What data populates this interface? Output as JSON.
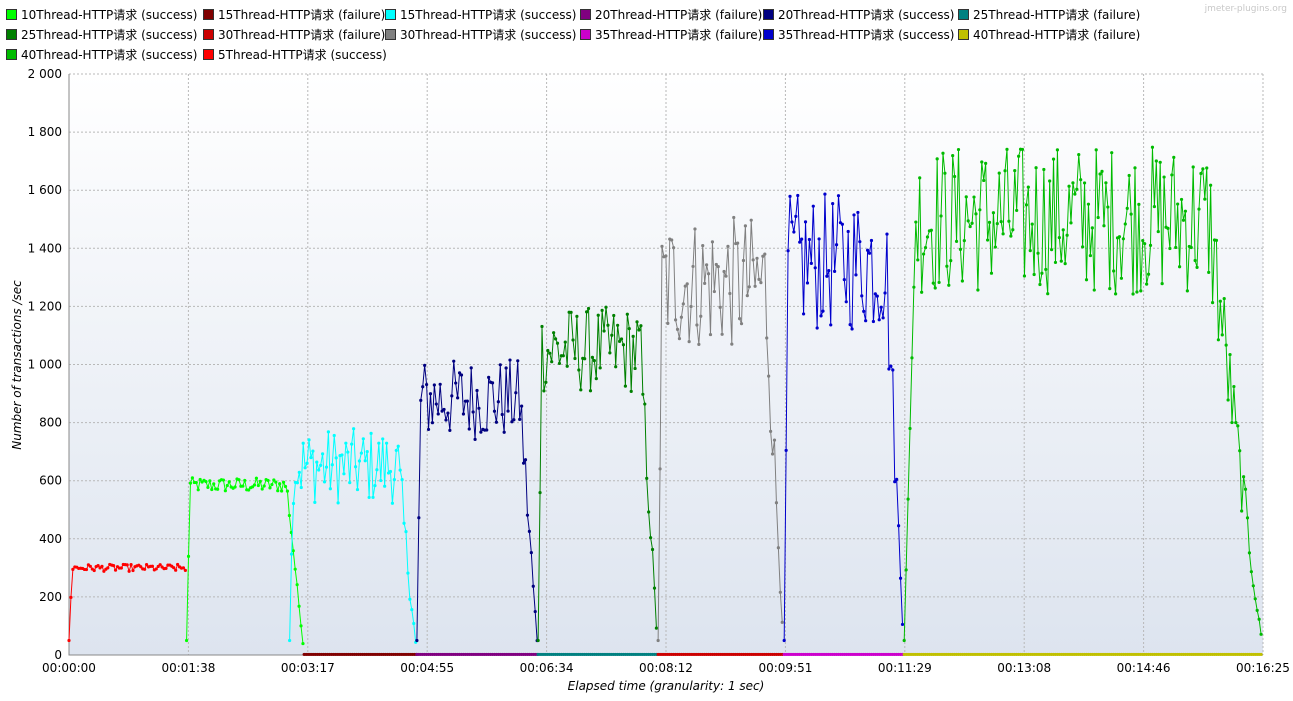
{
  "watermark": "jmeter-plugins.org",
  "chart_data": {
    "type": "line",
    "xlabel": "Elapsed time (granularity: 1 sec)",
    "ylabel": "Number of transactions /sec",
    "ylim": [
      0,
      2000
    ],
    "xlim_seconds": [
      0,
      985
    ],
    "y_ticks": [
      "0",
      "200",
      "400",
      "600",
      "800",
      "1 000",
      "1 200",
      "1 400",
      "1 600",
      "1 800",
      "2 000"
    ],
    "x_ticks": [
      "00:00:00",
      "00:01:38",
      "00:03:17",
      "00:04:55",
      "00:06:34",
      "00:08:12",
      "00:09:51",
      "00:11:29",
      "00:13:08",
      "00:14:46",
      "00:16:25"
    ],
    "grid": true,
    "legend_position": "top",
    "series": [
      {
        "name": "10Thread-HTTP请求 (success)",
        "color": "#00ff00",
        "start": 97,
        "end": 194,
        "level": 585,
        "noise": 25
      },
      {
        "name": "15Thread-HTTP请求 (failure)",
        "color": "#800000",
        "start": 194,
        "end": 287,
        "level": 2,
        "noise": 0
      },
      {
        "name": "15Thread-HTTP请求 (success)",
        "color": "#00ffff",
        "start": 182,
        "end": 287,
        "level": 650,
        "noise": 130
      },
      {
        "name": "20Thread-HTTP请求 (failure)",
        "color": "#800080",
        "start": 287,
        "end": 387,
        "level": 2,
        "noise": 0
      },
      {
        "name": "20Thread-HTTP请求 (success)",
        "color": "#000080",
        "start": 287,
        "end": 387,
        "level": 880,
        "noise": 140
      },
      {
        "name": "25Thread-HTTP请求 (failure)",
        "color": "#008080",
        "start": 387,
        "end": 486,
        "level": 2,
        "noise": 0
      },
      {
        "name": "25Thread-HTTP请求 (success)",
        "color": "#008000",
        "start": 387,
        "end": 486,
        "level": 1050,
        "noise": 150
      },
      {
        "name": "30Thread-HTTP请求 (failure)",
        "color": "#cc0000",
        "start": 486,
        "end": 590,
        "level": 2,
        "noise": 0
      },
      {
        "name": "30Thread-HTTP请求 (success)",
        "color": "#808080",
        "start": 486,
        "end": 590,
        "level": 1280,
        "noise": 230
      },
      {
        "name": "35Thread-HTTP请求 (failure)",
        "color": "#cc00cc",
        "start": 590,
        "end": 689,
        "level": 2,
        "noise": 0
      },
      {
        "name": "35Thread-HTTP请求 (success)",
        "color": "#0000cc",
        "start": 590,
        "end": 689,
        "level": 1350,
        "noise": 240
      },
      {
        "name": "40Thread-HTTP请求 (failure)",
        "color": "#c0c000",
        "start": 689,
        "end": 985,
        "level": 2,
        "noise": 0
      },
      {
        "name": "40Thread-HTTP请求 (success)",
        "color": "#00bb00",
        "start": 689,
        "end": 985,
        "level": 1500,
        "noise": 260
      },
      {
        "name": "5Thread-HTTP请求 (success)",
        "color": "#ff0000",
        "start": 0,
        "end": 97,
        "level": 300,
        "noise": 12
      }
    ]
  }
}
